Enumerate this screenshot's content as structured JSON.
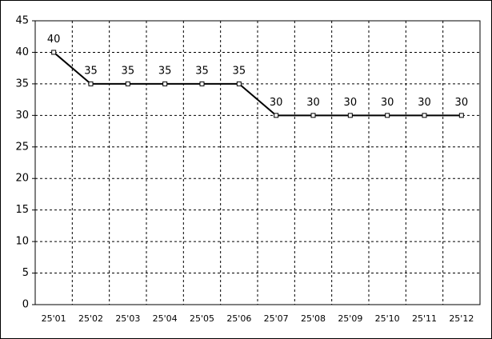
{
  "chart_data": {
    "type": "line",
    "categories": [
      "25'01",
      "25'02",
      "25'03",
      "25'04",
      "25'05",
      "25'06",
      "25'07",
      "25'08",
      "25'09",
      "25'10",
      "25'11",
      "25'12"
    ],
    "values": [
      40,
      35,
      35,
      35,
      35,
      35,
      30,
      30,
      30,
      30,
      30,
      30
    ],
    "color": "#000000",
    "ylim": [
      0,
      45
    ],
    "yticks": [
      0,
      5,
      10,
      15,
      20,
      25,
      30,
      35,
      40,
      45
    ],
    "grid": true,
    "data_labels": true
  }
}
